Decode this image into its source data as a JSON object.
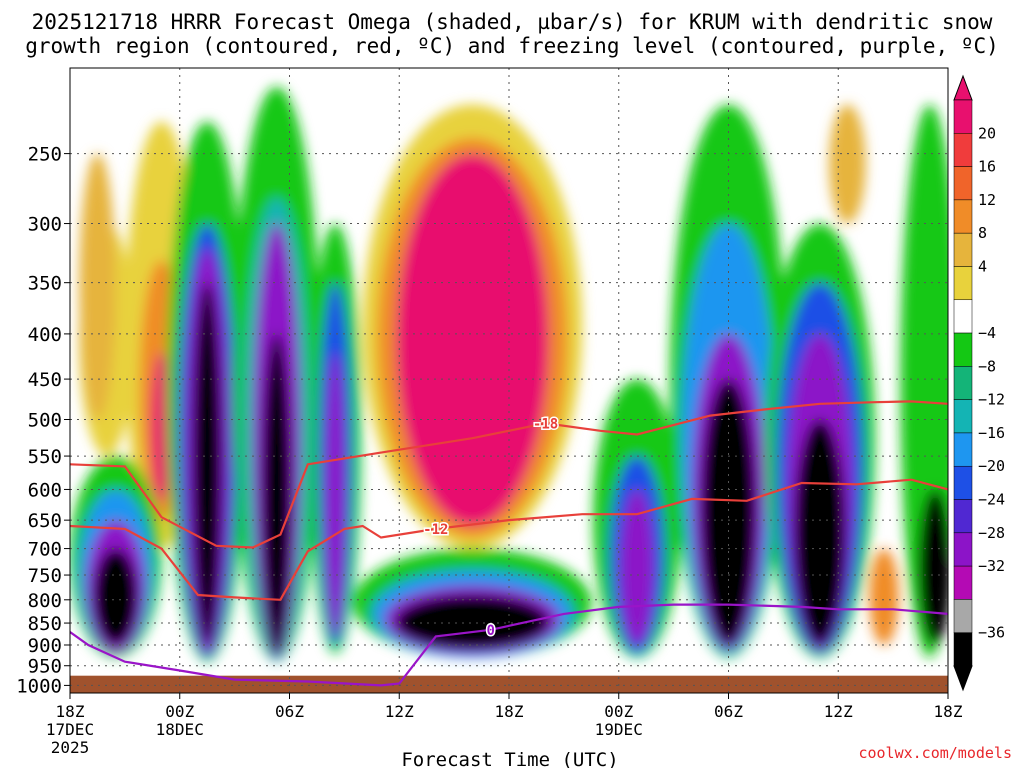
{
  "header": {
    "title_line1": "2025121718 HRRR Forecast Omega (shaded, µbar/s) for KRUM with dendritic snow",
    "title_line2": "growth region (contoured, red, ºC) and freezing level (contoured, purple, ºC)"
  },
  "footer": {
    "credit": "coolwx.com/models"
  },
  "chart_data": {
    "type": "heatmap",
    "title": "2025121718 HRRR Forecast Omega (shaded, µbar/s) for KRUM with dendritic snow growth region (contoured, red, ºC) and freezing level (contoured, purple, ºC)",
    "xlabel": "Forecast Time (UTC)",
    "ylabel": "",
    "x_range_hours": [
      0,
      48
    ],
    "y_range_hpa": [
      200,
      1020
    ],
    "y_scale": "log-pressure",
    "grid": true,
    "x_ticks": [
      {
        "hour": 0,
        "label": "18Z",
        "sub1": "17DEC",
        "sub2": "2025"
      },
      {
        "hour": 6,
        "label": "00Z",
        "sub1": "18DEC",
        "sub2": ""
      },
      {
        "hour": 12,
        "label": "06Z",
        "sub1": "",
        "sub2": ""
      },
      {
        "hour": 18,
        "label": "12Z",
        "sub1": "",
        "sub2": ""
      },
      {
        "hour": 24,
        "label": "18Z",
        "sub1": "",
        "sub2": ""
      },
      {
        "hour": 30,
        "label": "00Z",
        "sub1": "19DEC",
        "sub2": ""
      },
      {
        "hour": 36,
        "label": "06Z",
        "sub1": "",
        "sub2": ""
      },
      {
        "hour": 42,
        "label": "12Z",
        "sub1": "",
        "sub2": ""
      },
      {
        "hour": 48,
        "label": "18Z",
        "sub1": "",
        "sub2": ""
      }
    ],
    "y_ticks": [
      250,
      300,
      350,
      400,
      450,
      500,
      550,
      600,
      650,
      700,
      750,
      800,
      850,
      900,
      950,
      1000
    ],
    "colorbar": {
      "labels": [
        "20",
        "16",
        "12",
        "8",
        "4",
        "−4",
        "−8",
        "−12",
        "−16",
        "−20",
        "−24",
        "−28",
        "−32",
        "−36"
      ],
      "colors": [
        "#e8106e",
        "#f03c3c",
        "#f0642a",
        "#f08c28",
        "#e6b43c",
        "#e8d23c",
        "#ffffff",
        "#14c814",
        "#14b478",
        "#14b4b4",
        "#1e96f0",
        "#1e50e6",
        "#5028d2",
        "#8c14c8",
        "#b40ab4",
        "#a8a8a8",
        "#000000"
      ]
    },
    "dgz_contours": [
      {
        "label": "-18",
        "points": [
          [
            0,
            562
          ],
          [
            3,
            565
          ],
          [
            5,
            645
          ],
          [
            8,
            695
          ],
          [
            10,
            698
          ],
          [
            11.5,
            675
          ],
          [
            13,
            562
          ],
          [
            17,
            545
          ],
          [
            22,
            525
          ],
          [
            26,
            505
          ],
          [
            29,
            515
          ],
          [
            31,
            520
          ],
          [
            35,
            495
          ],
          [
            38,
            487
          ],
          [
            41,
            480
          ],
          [
            44,
            478
          ],
          [
            46,
            477
          ],
          [
            48,
            480
          ]
        ]
      },
      {
        "label": "-12",
        "points": [
          [
            0,
            660
          ],
          [
            3,
            665
          ],
          [
            5,
            700
          ],
          [
            7,
            790
          ],
          [
            9,
            795
          ],
          [
            11.5,
            800
          ],
          [
            13,
            705
          ],
          [
            15,
            665
          ],
          [
            16,
            660
          ],
          [
            17,
            680
          ],
          [
            20,
            665
          ],
          [
            24,
            650
          ],
          [
            28,
            640
          ],
          [
            31,
            640
          ],
          [
            34,
            615
          ],
          [
            37,
            618
          ],
          [
            40,
            590
          ],
          [
            43,
            592
          ],
          [
            46,
            585
          ],
          [
            48,
            600
          ]
        ]
      }
    ],
    "freezing_level": {
      "label": "0",
      "points": [
        [
          0,
          870
        ],
        [
          1,
          900
        ],
        [
          3,
          940
        ],
        [
          6,
          962
        ],
        [
          9,
          985
        ],
        [
          13,
          990
        ],
        [
          17,
          1000
        ],
        [
          18,
          995
        ],
        [
          20,
          880
        ],
        [
          23,
          865
        ],
        [
          27,
          830
        ],
        [
          30,
          815
        ],
        [
          33,
          810
        ],
        [
          36,
          810
        ],
        [
          40,
          815
        ],
        [
          42,
          820
        ],
        [
          45,
          820
        ],
        [
          48,
          830
        ]
      ]
    },
    "surface_pressure_hpa": 975
  }
}
